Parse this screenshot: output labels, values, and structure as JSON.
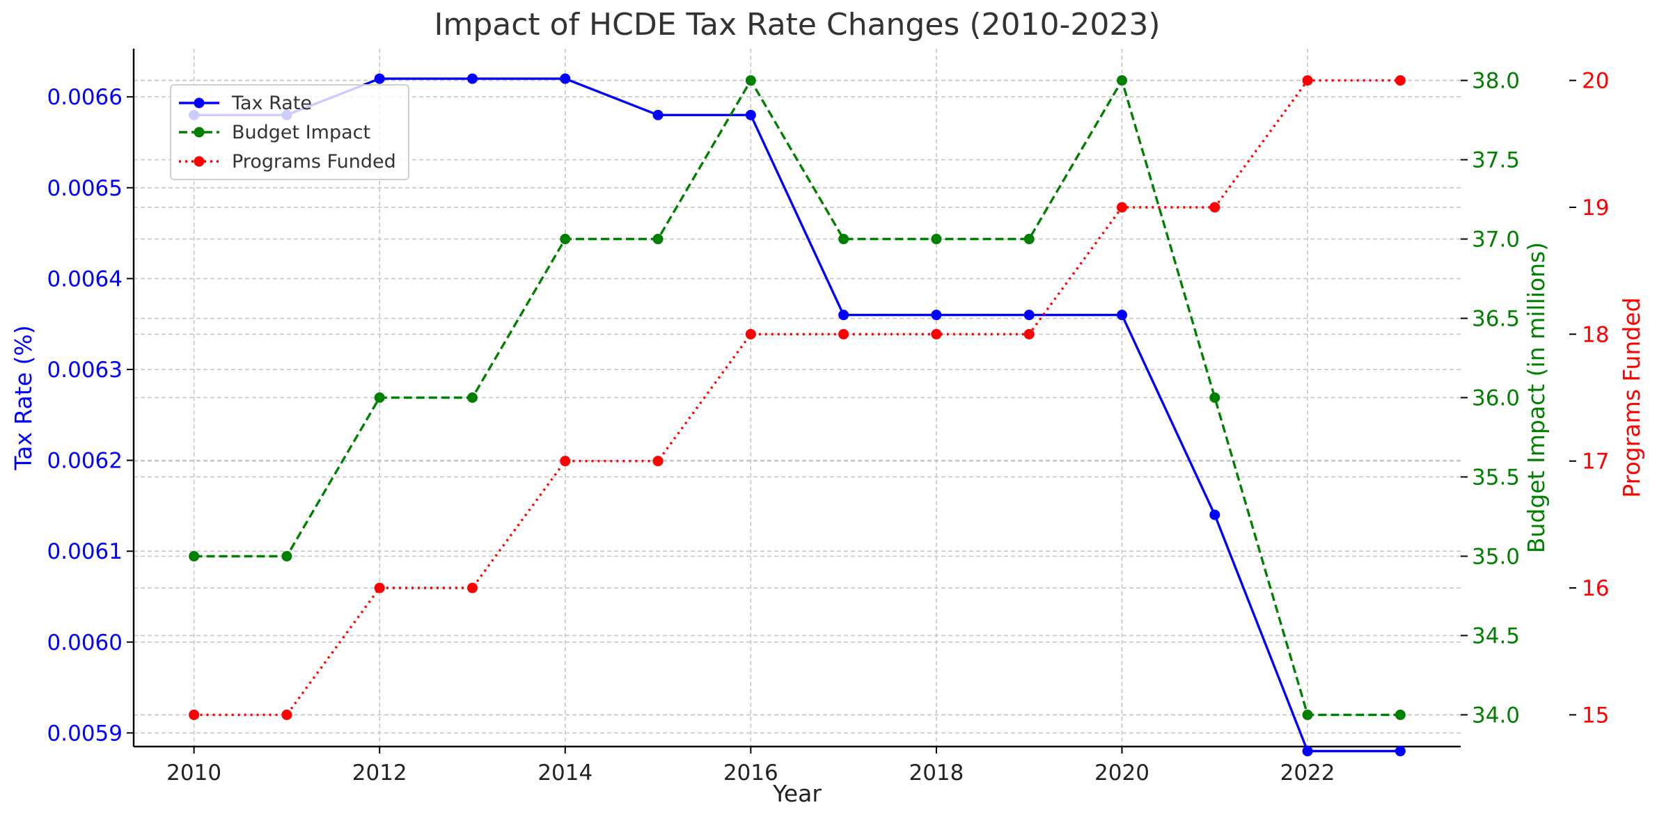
{
  "chart_data": {
    "type": "line",
    "title": "Impact of HCDE Tax Rate Changes (2010-2023)",
    "xlabel": "Year",
    "x": [
      2010,
      2011,
      2012,
      2013,
      2014,
      2015,
      2016,
      2017,
      2018,
      2019,
      2020,
      2021,
      2022,
      2023
    ],
    "x_ticks": [
      "2010",
      "2012",
      "2014",
      "2016",
      "2018",
      "2020",
      "2022"
    ],
    "xlim": [
      2009.35,
      2023.65
    ],
    "grid": true,
    "legend_position": "top-left",
    "axes": [
      {
        "id": "left",
        "label": "Tax Rate (%)",
        "color": "#0000ff",
        "ylim": [
          0.005885,
          0.006653
        ],
        "ticks": [
          "0.0059",
          "0.0060",
          "0.0061",
          "0.0062",
          "0.0063",
          "0.0064",
          "0.0065",
          "0.0066"
        ]
      },
      {
        "id": "mid",
        "label": "Budget Impact (in millions)",
        "color": "#008000",
        "ylim": [
          33.8,
          38.2
        ],
        "ticks": [
          "34.0",
          "34.5",
          "35.0",
          "35.5",
          "36.0",
          "36.5",
          "37.0",
          "37.5",
          "38.0"
        ]
      },
      {
        "id": "right",
        "label": "Programs Funded",
        "color": "#ff0000",
        "ylim": [
          14.75,
          20.25
        ],
        "ticks": [
          "15",
          "16",
          "17",
          "18",
          "19",
          "20"
        ]
      }
    ],
    "series": [
      {
        "name": "Tax Rate",
        "axis": "left",
        "color": "#0000ff",
        "style": "solid",
        "values": [
          0.00658,
          0.00658,
          0.00662,
          0.00662,
          0.00662,
          0.00658,
          0.00658,
          0.00636,
          0.00636,
          0.00636,
          0.00636,
          0.00614,
          0.00588,
          0.00588
        ]
      },
      {
        "name": "Budget Impact",
        "axis": "mid",
        "color": "#008000",
        "style": "dashed",
        "values": [
          35.0,
          35.0,
          36.0,
          36.0,
          37.0,
          37.0,
          38.0,
          37.0,
          37.0,
          37.0,
          38.0,
          36.0,
          34.0,
          34.0
        ]
      },
      {
        "name": "Programs Funded",
        "axis": "right",
        "color": "#ff0000",
        "style": "dotted",
        "values": [
          15,
          15,
          16,
          16,
          17,
          17,
          18,
          18,
          18,
          18,
          19,
          19,
          20,
          20
        ]
      }
    ]
  }
}
